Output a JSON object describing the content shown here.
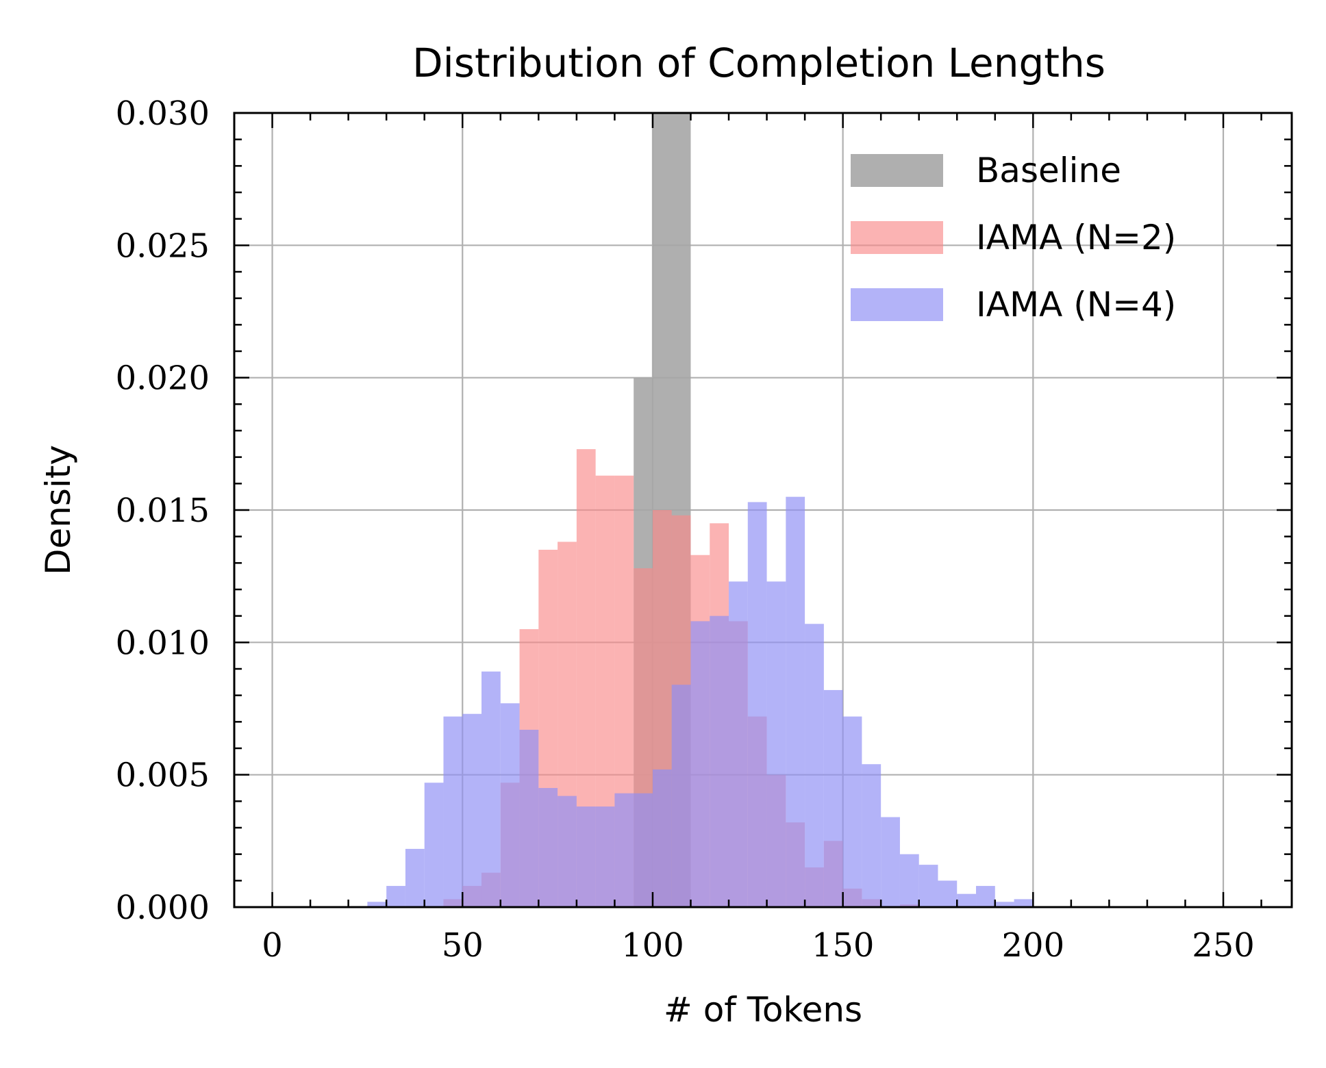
{
  "chart_data": {
    "type": "histogram",
    "title": "Distribution of Completion Lengths",
    "xlabel": "# of Tokens",
    "ylabel": "Density",
    "xlim": [
      -10,
      268
    ],
    "ylim": [
      0,
      0.03
    ],
    "xticks": [
      0,
      50,
      100,
      150,
      200,
      250
    ],
    "xtick_labels": [
      "0",
      "50",
      "100",
      "150",
      "200",
      "250"
    ],
    "yticks": [
      0,
      0.005,
      0.01,
      0.015,
      0.02,
      0.025,
      0.03
    ],
    "ytick_labels": [
      "0.000",
      "0.005",
      "0.010",
      "0.015",
      "0.020",
      "0.025",
      "0.030"
    ],
    "grid": true,
    "legend_position": "top-right",
    "series": [
      {
        "name": "Baseline",
        "color": "#a6a6a6",
        "opacity": 0.9,
        "bins": [
          {
            "x0": 95,
            "x1": 100,
            "value": 0.02
          },
          {
            "x0": 100,
            "x1": 110,
            "value": 0.03
          }
        ]
      },
      {
        "name": "IAMA (N=2)",
        "color": "#f98b8b",
        "opacity": 0.65,
        "bins": [
          {
            "x0": 45,
            "x1": 50,
            "value": 0.0003
          },
          {
            "x0": 50,
            "x1": 55,
            "value": 0.0008
          },
          {
            "x0": 55,
            "x1": 60,
            "value": 0.0013
          },
          {
            "x0": 60,
            "x1": 65,
            "value": 0.0047
          },
          {
            "x0": 65,
            "x1": 70,
            "value": 0.0105
          },
          {
            "x0": 70,
            "x1": 75,
            "value": 0.0135
          },
          {
            "x0": 75,
            "x1": 80,
            "value": 0.0138
          },
          {
            "x0": 80,
            "x1": 85,
            "value": 0.0173
          },
          {
            "x0": 85,
            "x1": 90,
            "value": 0.0163
          },
          {
            "x0": 90,
            "x1": 95,
            "value": 0.0163
          },
          {
            "x0": 95,
            "x1": 100,
            "value": 0.0128
          },
          {
            "x0": 100,
            "x1": 105,
            "value": 0.015
          },
          {
            "x0": 105,
            "x1": 110,
            "value": 0.0148
          },
          {
            "x0": 110,
            "x1": 115,
            "value": 0.0133
          },
          {
            "x0": 115,
            "x1": 120,
            "value": 0.0145
          },
          {
            "x0": 120,
            "x1": 125,
            "value": 0.0108
          },
          {
            "x0": 125,
            "x1": 130,
            "value": 0.0072
          },
          {
            "x0": 130,
            "x1": 135,
            "value": 0.005
          },
          {
            "x0": 135,
            "x1": 140,
            "value": 0.0032
          },
          {
            "x0": 140,
            "x1": 145,
            "value": 0.0015
          },
          {
            "x0": 145,
            "x1": 150,
            "value": 0.0025
          },
          {
            "x0": 150,
            "x1": 155,
            "value": 0.0007
          },
          {
            "x0": 155,
            "x1": 160,
            "value": 0.0003
          },
          {
            "x0": 165,
            "x1": 170,
            "value": 0.0001
          }
        ]
      },
      {
        "name": "IAMA (N=4)",
        "color": "#8f8ff5",
        "opacity": 0.68,
        "bins": [
          {
            "x0": 25,
            "x1": 30,
            "value": 0.0002
          },
          {
            "x0": 30,
            "x1": 35,
            "value": 0.0008
          },
          {
            "x0": 35,
            "x1": 40,
            "value": 0.0022
          },
          {
            "x0": 40,
            "x1": 45,
            "value": 0.0047
          },
          {
            "x0": 45,
            "x1": 50,
            "value": 0.0072
          },
          {
            "x0": 50,
            "x1": 55,
            "value": 0.0073
          },
          {
            "x0": 55,
            "x1": 60,
            "value": 0.0089
          },
          {
            "x0": 60,
            "x1": 65,
            "value": 0.0077
          },
          {
            "x0": 65,
            "x1": 70,
            "value": 0.0067
          },
          {
            "x0": 70,
            "x1": 75,
            "value": 0.0045
          },
          {
            "x0": 75,
            "x1": 80,
            "value": 0.0042
          },
          {
            "x0": 80,
            "x1": 85,
            "value": 0.0038
          },
          {
            "x0": 85,
            "x1": 90,
            "value": 0.0038
          },
          {
            "x0": 90,
            "x1": 95,
            "value": 0.0043
          },
          {
            "x0": 95,
            "x1": 100,
            "value": 0.0043
          },
          {
            "x0": 100,
            "x1": 105,
            "value": 0.0052
          },
          {
            "x0": 105,
            "x1": 110,
            "value": 0.0084
          },
          {
            "x0": 110,
            "x1": 115,
            "value": 0.0108
          },
          {
            "x0": 115,
            "x1": 120,
            "value": 0.011
          },
          {
            "x0": 120,
            "x1": 125,
            "value": 0.0123
          },
          {
            "x0": 125,
            "x1": 130,
            "value": 0.0153
          },
          {
            "x0": 130,
            "x1": 135,
            "value": 0.0123
          },
          {
            "x0": 135,
            "x1": 140,
            "value": 0.0155
          },
          {
            "x0": 140,
            "x1": 145,
            "value": 0.0107
          },
          {
            "x0": 145,
            "x1": 150,
            "value": 0.0082
          },
          {
            "x0": 150,
            "x1": 155,
            "value": 0.0072
          },
          {
            "x0": 155,
            "x1": 160,
            "value": 0.0054
          },
          {
            "x0": 160,
            "x1": 165,
            "value": 0.0034
          },
          {
            "x0": 165,
            "x1": 170,
            "value": 0.002
          },
          {
            "x0": 170,
            "x1": 175,
            "value": 0.0016
          },
          {
            "x0": 175,
            "x1": 180,
            "value": 0.001
          },
          {
            "x0": 180,
            "x1": 185,
            "value": 0.0005
          },
          {
            "x0": 185,
            "x1": 190,
            "value": 0.0008
          },
          {
            "x0": 190,
            "x1": 195,
            "value": 0.0002
          },
          {
            "x0": 195,
            "x1": 200,
            "value": 0.0003
          }
        ]
      }
    ]
  }
}
